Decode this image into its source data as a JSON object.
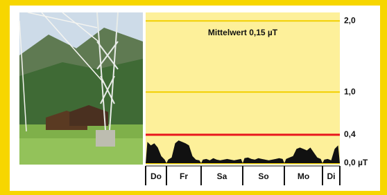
{
  "chart_data": {
    "type": "area",
    "title": "Mittelwert 0,15 µT",
    "categories": [
      "Do",
      "Fr",
      "Sa",
      "So",
      "Mo",
      "Di"
    ],
    "values": [
      [
        0.3,
        0.25,
        0.28,
        0.22,
        0.1,
        0.05
      ],
      [
        0.05,
        0.08,
        0.28,
        0.32,
        0.3,
        0.28,
        0.25,
        0.1,
        0.05,
        0.04
      ],
      [
        0.05,
        0.06,
        0.04,
        0.07,
        0.05,
        0.04,
        0.05,
        0.06,
        0.05,
        0.04,
        0.05,
        0.06
      ],
      [
        0.07,
        0.08,
        0.06,
        0.05,
        0.07,
        0.06,
        0.05,
        0.04,
        0.05,
        0.06,
        0.07,
        0.06
      ],
      [
        0.06,
        0.08,
        0.1,
        0.2,
        0.22,
        0.2,
        0.18,
        0.22,
        0.15,
        0.08,
        0.06
      ],
      [
        0.05,
        0.06,
        0.04,
        0.2,
        0.25
      ]
    ],
    "color": "#111111",
    "ylim": [
      0,
      2.1
    ],
    "yticks": [
      {
        "value": 0,
        "label": "0,0 µT"
      },
      {
        "value": 0.4,
        "label": "0,4"
      },
      {
        "value": 1,
        "label": "1,0"
      },
      {
        "value": 2,
        "label": "2,0"
      }
    ],
    "grid": true,
    "reference_line": {
      "value": 0.4,
      "color": "#e8141c"
    }
  }
}
